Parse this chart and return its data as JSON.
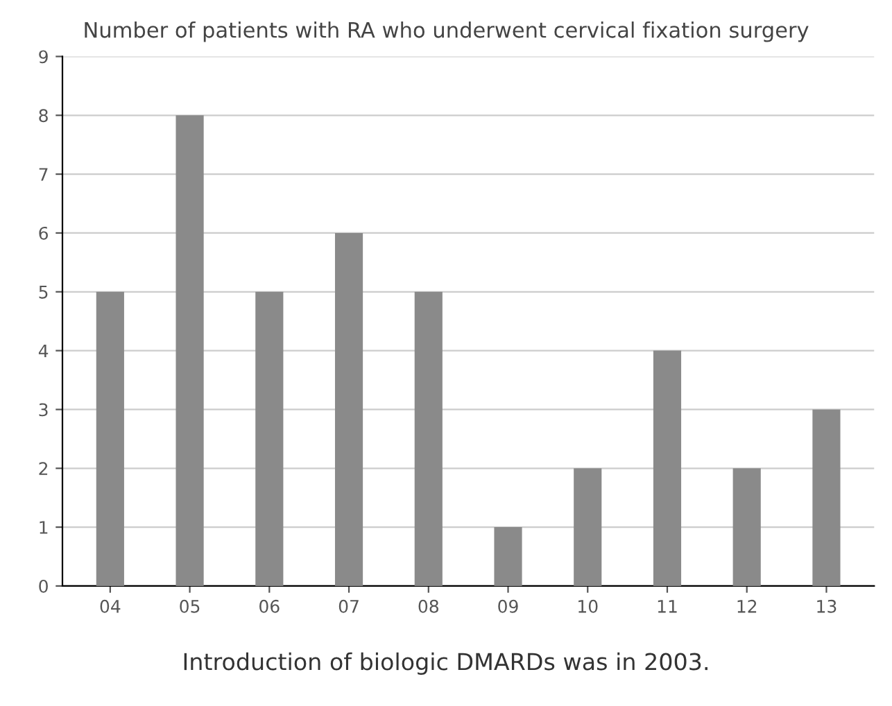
{
  "chart_data": {
    "type": "bar",
    "title": "Number of patients with RA who underwent cervical fixation surgery",
    "categories": [
      "04",
      "05",
      "06",
      "07",
      "08",
      "09",
      "10",
      "11",
      "12",
      "13"
    ],
    "values": [
      5,
      8,
      5,
      6,
      5,
      1,
      2,
      4,
      2,
      3
    ],
    "color": "#8a8a8a",
    "ylim": [
      0,
      9
    ],
    "yticks": [
      0,
      1,
      2,
      3,
      4,
      5,
      6,
      7,
      8,
      9
    ],
    "grid": "y",
    "annotations": [
      "Introduction of biologic DMARDs was in 2003."
    ]
  }
}
